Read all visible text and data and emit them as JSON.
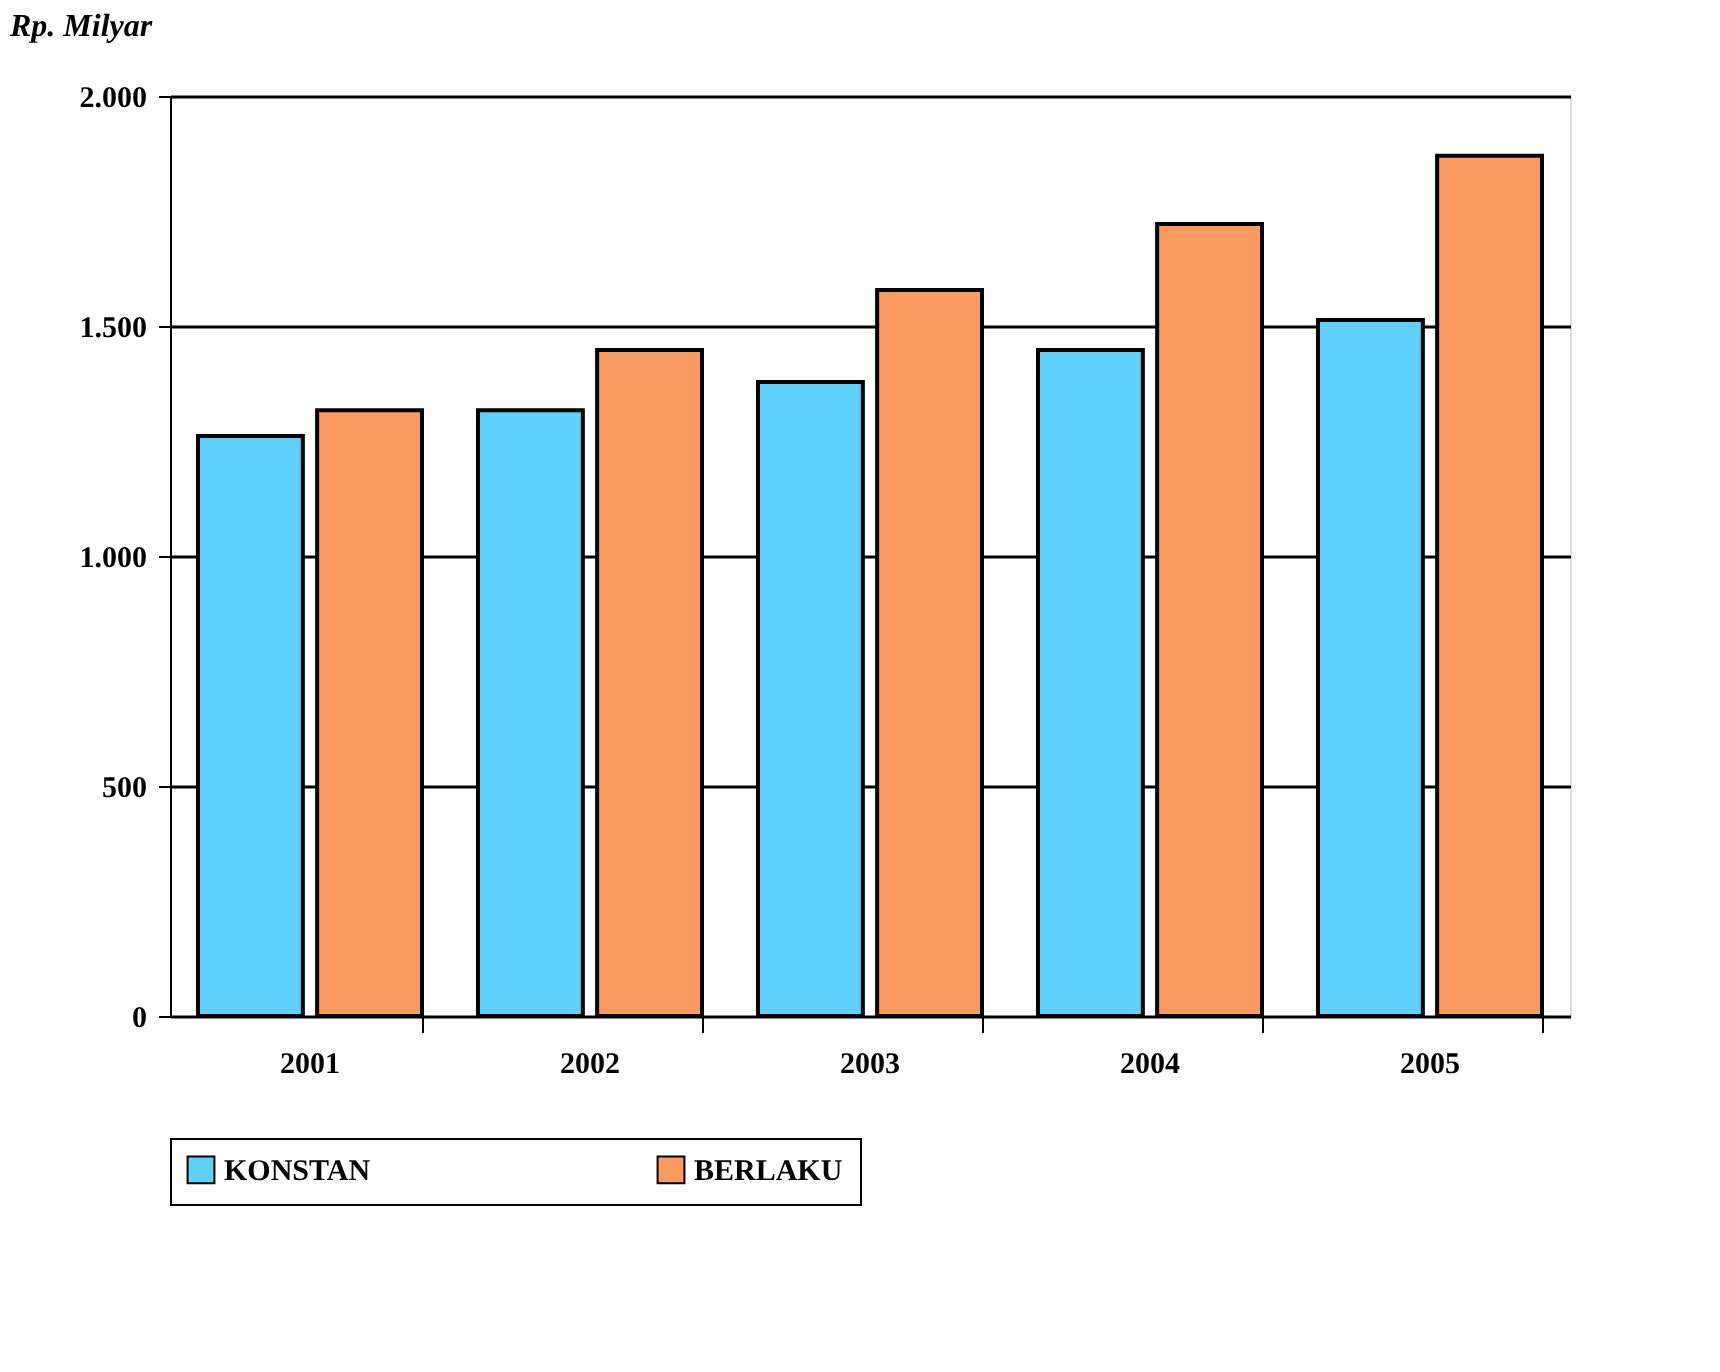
{
  "chart_data": {
    "type": "bar",
    "ylabel": "Rp. Milyar",
    "categories": [
      "2001",
      "2002",
      "2003",
      "2004",
      "2005"
    ],
    "series": [
      {
        "name": "KONSTAN",
        "color": "#5fd0fb",
        "values": [
          1261,
          1317,
          1378,
          1448,
          1513
        ]
      },
      {
        "name": "BERLAKU",
        "color": "#f99a5e",
        "values": [
          1317,
          1448,
          1578,
          1722,
          1870
        ]
      }
    ],
    "ylim": [
      0,
      2000
    ],
    "yticks": [
      {
        "value": 0,
        "label": "0"
      },
      {
        "value": 500,
        "label": "500"
      },
      {
        "value": 1000,
        "label": "1.000"
      },
      {
        "value": 1500,
        "label": "1.500"
      },
      {
        "value": 2000,
        "label": "2.000"
      }
    ],
    "grid": "y",
    "legend": "bottom"
  }
}
